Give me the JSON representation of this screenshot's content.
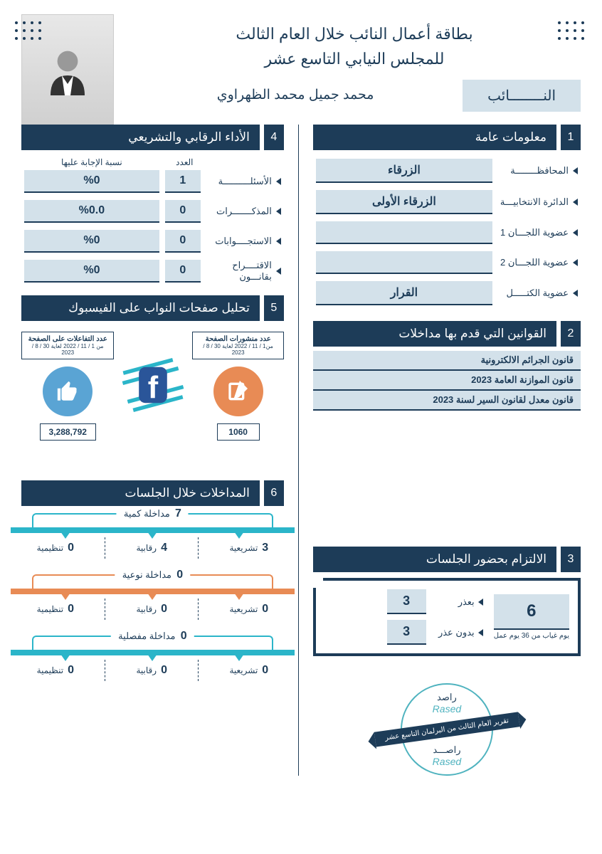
{
  "header": {
    "title_line1": "بطاقة أعمال النائب خلال العام الثالث",
    "title_line2": "للمجلس النيابي التاسع عشر",
    "mp_label": "النــــــــائب",
    "mp_name": "محمد جميل محمد الظهراوي"
  },
  "sections": {
    "s1": {
      "num": "1",
      "title": "معلومات عامة",
      "rows": [
        {
          "label": "المحافظــــــــة",
          "value": "الزرقاء"
        },
        {
          "label": "الدائرة الانتخابيـــة",
          "value": "الزرقاء الأولى"
        },
        {
          "label": "عضوية اللجـــان 1",
          "value": ""
        },
        {
          "label": "عضوية اللجـــان 2",
          "value": ""
        },
        {
          "label": "عضوية الكتـــــل",
          "value": "القرار"
        }
      ]
    },
    "s2": {
      "num": "2",
      "title": "القوانين التي قدم بها مداخلات",
      "laws": [
        "قانون الجرائم الالكترونية",
        "قانون الموازنة العامة 2023",
        "قانون معدل لقانون السير لسنة 2023"
      ]
    },
    "s3": {
      "num": "3",
      "title": "الالتزام بحضور الجلسات",
      "absent_total": "6",
      "absent_caption": "يوم غياب من 36 يوم عمل",
      "excused_label": "بعذر",
      "excused": "3",
      "unexcused_label": "بدون عذر",
      "unexcused": "3"
    },
    "s4": {
      "num": "4",
      "title": "الأداء الرقابي والتشريعي",
      "col_count": "العدد",
      "col_pct": "نسبة الإجابة عليها",
      "rows": [
        {
          "label": "الأسئلــــــــــة",
          "count": "1",
          "pct": "%0"
        },
        {
          "label": "المذكـــــــرات",
          "count": "0",
          "pct": "%0.0"
        },
        {
          "label": "الاستجــــوابات",
          "count": "0",
          "pct": "%0"
        },
        {
          "label": "الاقتــــراح بقانـــون",
          "count": "0",
          "pct": "%0"
        }
      ]
    },
    "s5": {
      "num": "5",
      "title": "تحليل صفحات النواب على الفيسبوك",
      "posts_caption": "عدد منشورات الصفحة",
      "posts_period": "من1 / 11 / 2022 لغاية 30 / 8 / 2023",
      "posts_value": "1060",
      "interactions_caption": "عدد التفاعلات على الصفحة",
      "interactions_period": "من 1 / 11 / 2022 لغاية 30 / 8 / 2023",
      "interactions_value": "3,288,792"
    },
    "s6": {
      "num": "6",
      "title": "المداخلات خلال الجلسات",
      "groups": [
        {
          "total": "7",
          "label": "مداخلة كمية",
          "color": "#2bb5c9",
          "subs": [
            {
              "label": "تشريعية",
              "num": "3"
            },
            {
              "label": "رقابية",
              "num": "4"
            },
            {
              "label": "تنظيمية",
              "num": "0"
            }
          ]
        },
        {
          "total": "0",
          "label": "مداخلة نوعية",
          "color": "#e88b55",
          "subs": [
            {
              "label": "تشريعية",
              "num": "0"
            },
            {
              "label": "رقابية",
              "num": "0"
            },
            {
              "label": "تنظيمية",
              "num": "0"
            }
          ]
        },
        {
          "total": "0",
          "label": "مداخلة مفصلية",
          "color": "#2bb5c9",
          "subs": [
            {
              "label": "تشريعية",
              "num": "0"
            },
            {
              "label": "رقابية",
              "num": "0"
            },
            {
              "label": "تنظيمية",
              "num": "0"
            }
          ]
        }
      ]
    }
  },
  "stamp": {
    "top_ar": "راصد",
    "top_en": "Rased",
    "banner": "تقرير العام الثالث من البرلمان التاسع عشر",
    "bottom_ar": "راصـــد",
    "bottom_en": "Rased"
  },
  "colors": {
    "primary": "#1d3c58",
    "light": "#d3e1ea",
    "teal": "#2bb5c9",
    "orange": "#e88b55",
    "blue": "#5aa4d4"
  }
}
